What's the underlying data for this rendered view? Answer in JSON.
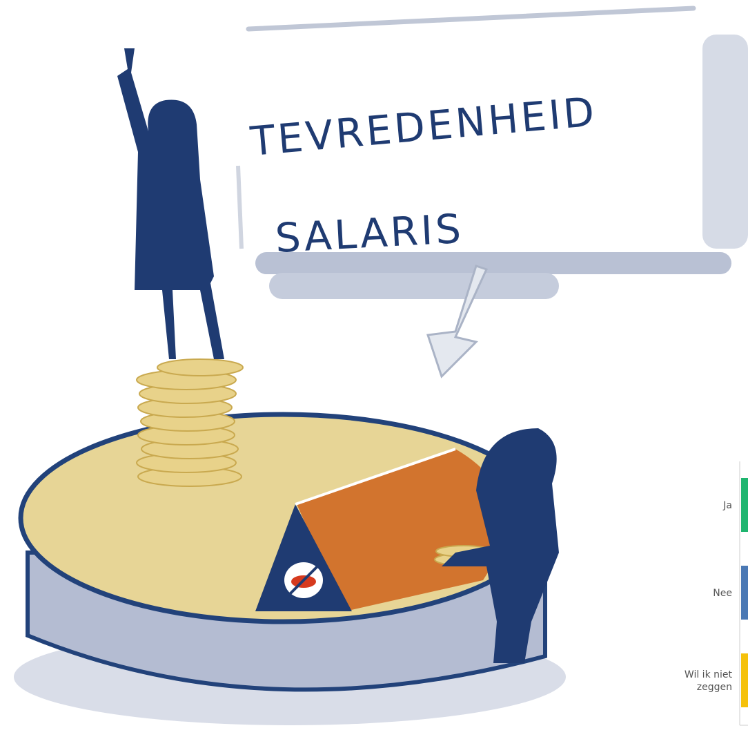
{
  "illustration": {
    "title_lines": [
      "TEVREDENHEID",
      "SALARIS"
    ]
  },
  "chart": {
    "categories": [
      "Ja",
      "Nee",
      "Wil ik niet zeggen"
    ],
    "colors": [
      "#1fb56f",
      "#4a78b4",
      "#f5c10a"
    ]
  }
}
